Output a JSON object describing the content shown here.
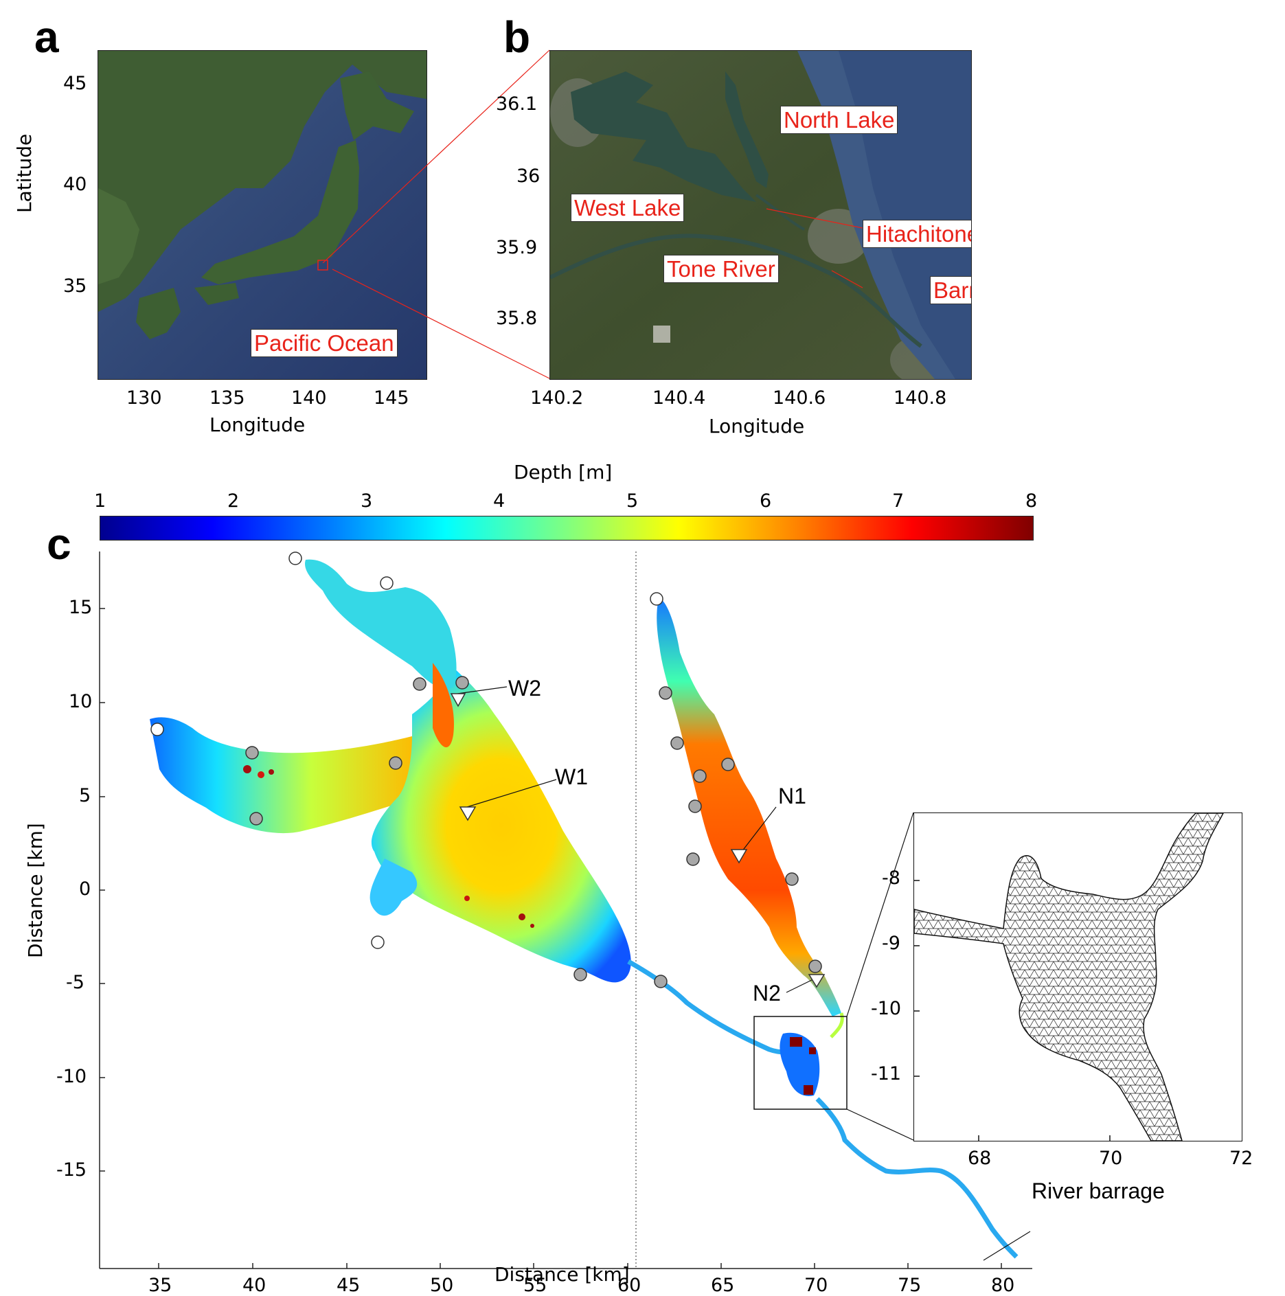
{
  "panels": {
    "a": {
      "letter": "a",
      "ylabel": "Latitude",
      "xlabel": "Longitude",
      "xticks": [
        "130",
        "135",
        "140",
        "145"
      ],
      "yticks": [
        "45",
        "40",
        "35"
      ],
      "labels": {
        "ocean": "Pacific Ocean"
      }
    },
    "b": {
      "letter": "b",
      "xlabel": "Longitude",
      "xticks": [
        "140.2",
        "140.4",
        "140.6",
        "140.8"
      ],
      "yticks": [
        "36.1",
        "36",
        "35.9",
        "35.8"
      ],
      "labels": {
        "north_lake": "North Lake",
        "west_lake": "West Lake",
        "hitachitone": "Hitachitone River",
        "tone": "Tone River",
        "barrage": "Barrage"
      }
    },
    "c": {
      "letter": "c",
      "colorbar": {
        "title": "Depth [m]",
        "ticks": [
          "1",
          "2",
          "3",
          "4",
          "5",
          "6",
          "7",
          "8"
        ],
        "colormap": [
          "#00008f",
          "#0000ff",
          "#0080ff",
          "#00ffff",
          "#80ff80",
          "#ffff00",
          "#ff8000",
          "#ff0000",
          "#800000"
        ]
      },
      "xlabel": "Distance [km]",
      "ylabel": "Distance [km]",
      "xticks": [
        "35",
        "40",
        "45",
        "50",
        "55",
        "60",
        "65",
        "70",
        "75",
        "80"
      ],
      "yticks": [
        "15",
        "10",
        "5",
        "0",
        "-5",
        "-10",
        "-15"
      ],
      "stations": {
        "w1": "W1",
        "w2": "W2",
        "n1": "N1",
        "n2": "N2",
        "barrage": "River barrage"
      },
      "inset": {
        "xticks": [
          "68",
          "70",
          "72"
        ],
        "yticks": [
          "-8",
          "-9",
          "-10",
          "-11"
        ]
      }
    }
  },
  "colors": {
    "label_red": "#e8231a",
    "ocean": "#33466d",
    "land": "#3c5a2a",
    "river_line": "#29a9f0",
    "station_gray": "#a8a8a8"
  }
}
